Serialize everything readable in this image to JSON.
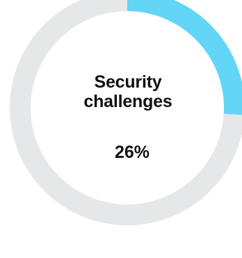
{
  "chart_data": {
    "type": "pie",
    "style": "donut",
    "title_lines": [
      "Security",
      "challenges"
    ],
    "value_label": "26%",
    "values": [
      26,
      74
    ],
    "start_angle_deg": 0,
    "direction": "clockwise",
    "colors": [
      "#63d5f7",
      "#e6e7e9"
    ]
  }
}
